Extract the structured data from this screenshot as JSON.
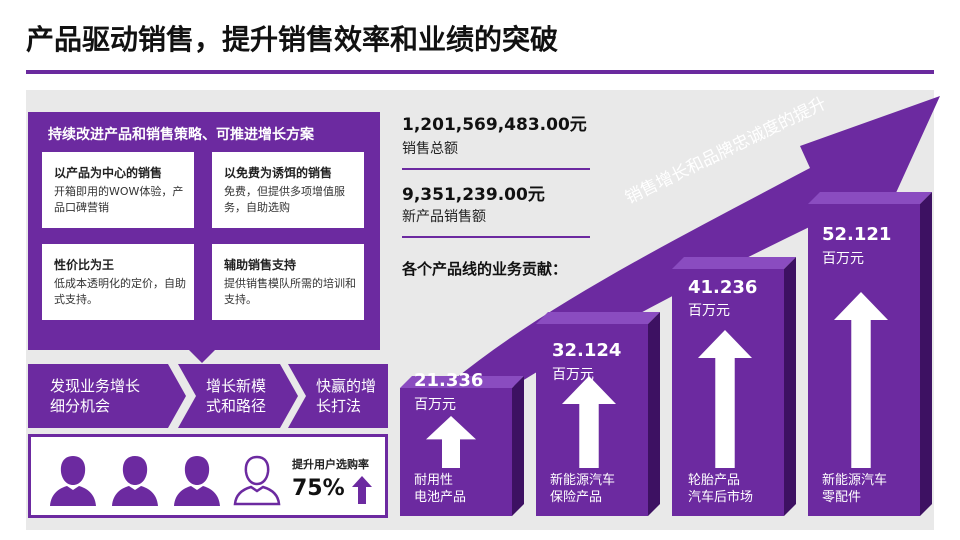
{
  "title": "产品驱动销售，提升销售效率和业绩的突破",
  "strategy": {
    "header": "持续改进产品和销售策略、可推进增长方案",
    "cards": [
      {
        "title": "以产品为中心的销售",
        "body": "开箱即用的WOW体验，产品口碑营销"
      },
      {
        "title": "以免费为诱饵的销售",
        "body": "免费，但提供多项增值服务，自助选购"
      },
      {
        "title": "性价比为王",
        "body": "低成本透明化的定价，自助式支持。"
      },
      {
        "title": "辅助销售支持",
        "body": "提供销售模队所需的培训和支持。"
      }
    ]
  },
  "chevrons": {
    "c1": {
      "line1": "发现业务增长",
      "line2": "细分机会"
    },
    "c2": {
      "line1": "增长新模",
      "line2": "式和路径"
    },
    "c3": {
      "line1": "快赢的增",
      "line2": "长打法"
    }
  },
  "users": {
    "rate_label": "提升用户选购率",
    "rate_value": "75%",
    "icons": [
      "user-filled-icon",
      "user-filled-icon",
      "user-filled-icon",
      "user-outline-icon"
    ]
  },
  "stats": {
    "total_value": "1,201,569,483.00元",
    "total_label": "销售总额",
    "new_value": "9,351,239.00元",
    "new_label": "新产品销售额"
  },
  "contrib_label": "各个产品线的业务贡献：",
  "arrow_text": "销售增长和品牌忠诚度的提升",
  "colors": {
    "purple": "#6c2aa0",
    "purple_dark": "#4f1a7c",
    "purple_side": "#3d1162",
    "grey": "#e9e9e9"
  },
  "chart_data": {
    "type": "bar",
    "categories": [
      "耐用性电池产品",
      "新能源汽车保险产品",
      "轮胎产品汽车后市场",
      "新能源汽车零配件"
    ],
    "values": [
      21.336,
      32.124,
      41.236,
      52.121
    ],
    "unit": "百万元",
    "bars": [
      {
        "value": "21.336",
        "unit": "百万元",
        "line1": "耐用性",
        "line2": "电池产品"
      },
      {
        "value": "32.124",
        "unit": "百万元",
        "line1": "新能源汽车",
        "line2": "保险产品"
      },
      {
        "value": "41.236",
        "unit": "百万元",
        "line1": "轮胎产品",
        "line2": "汽车后市场"
      },
      {
        "value": "52.121",
        "unit": "百万元",
        "line1": "新能源汽车",
        "line2": "零配件"
      }
    ]
  }
}
